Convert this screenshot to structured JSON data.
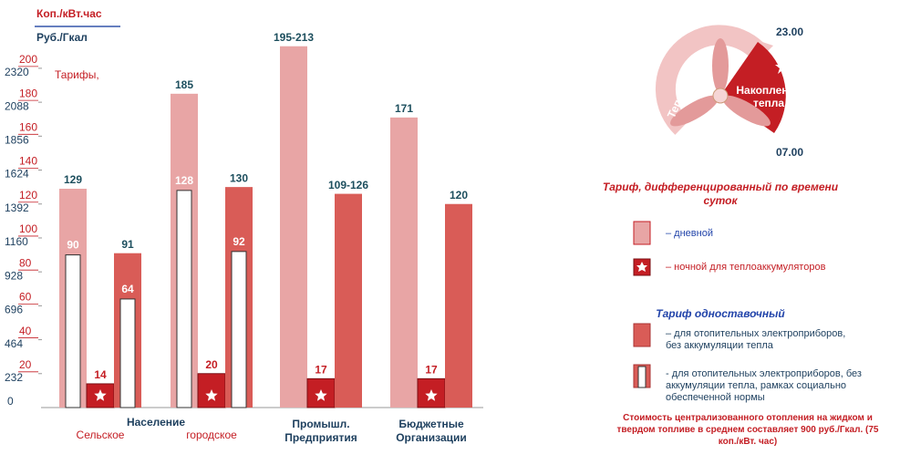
{
  "chart_data": {
    "type": "bar",
    "y_axis_label": "Коп./кВт.час",
    "y2_axis_label": "Руб./Гкал",
    "annotation": "Тарифы,",
    "group_label": "Население",
    "categories": [
      "Сельское",
      "городское",
      "Промышл. Предприятия",
      "Бюджетные Организации"
    ],
    "series": [
      {
        "name": "– дневной",
        "color": "#e8a5a5",
        "values": [
          129,
          185,
          [
            195,
            213
          ],
          171
        ],
        "value_labels": [
          "129",
          "185",
          "195-213",
          "171"
        ]
      },
      {
        "name": "– ночной для теплоаккумуляторов",
        "color": "#c41e24",
        "values": [
          14,
          20,
          17,
          17
        ]
      },
      {
        "name": "– для отопительных электроприборов, без аккумуляции тепла",
        "color": "#d95c57",
        "values": [
          91,
          130,
          [
            109,
            126
          ],
          120
        ],
        "value_labels": [
          "91",
          "130",
          "109-126",
          "120"
        ]
      },
      {
        "name": "- для отопительных электроприборов, без аккумуляции тепла, рамках социально обеспеченной нормы",
        "color": "#ffffff",
        "values": [
          [
            90,
            64
          ],
          [
            128,
            92
          ],
          null,
          null
        ]
      }
    ],
    "legend_titles": [
      "Тариф, дифференцированный по времени суток",
      "Тариф одноставочный"
    ],
    "footnote": "Стоимость централизованного отопления на жидком и твердом топливе в среднем составляет 900 руб./Гкал. (75 коп./кВт. час)",
    "ylim": [
      0,
      215
    ],
    "yticks": [
      0,
      20,
      40,
      60,
      80,
      100,
      120,
      140,
      160,
      180,
      200
    ],
    "y2lim": [
      0,
      2494
    ],
    "y2ticks": [
      232,
      464,
      696,
      928,
      1160,
      1392,
      1624,
      1856,
      2088,
      2320
    ]
  },
  "diagram": {
    "ring_label": "Теплотрасса",
    "sector_label": [
      "Накопление",
      "тепла"
    ],
    "start_time": "23.00",
    "end_time": "07.00"
  }
}
